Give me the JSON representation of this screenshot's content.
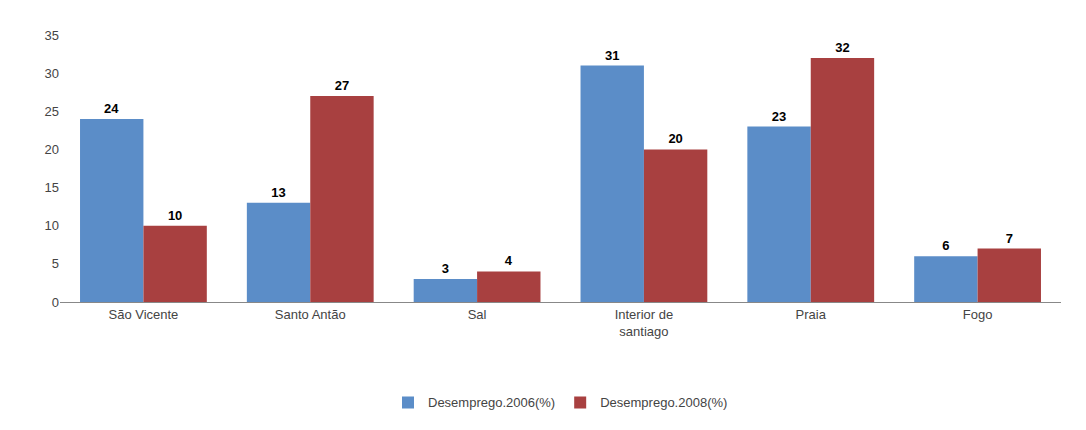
{
  "chart_data": {
    "type": "bar",
    "categories": [
      "São Vicente",
      "Santo Antão",
      "Sal",
      "Interior de\nsantiago",
      "Praia",
      "Fogo"
    ],
    "series": [
      {
        "name": "Desemprego.2006(%)",
        "color": "#5B8DC8",
        "values": [
          24,
          13,
          3,
          31,
          23,
          6
        ]
      },
      {
        "name": "Desemprego.2008(%)",
        "color": "#A84040",
        "values": [
          10,
          27,
          4,
          20,
          32,
          7
        ]
      }
    ],
    "ylim": [
      0,
      35
    ],
    "yticks": [
      0,
      5,
      10,
      15,
      20,
      25,
      30,
      35
    ],
    "grid": false,
    "legend": "bottom",
    "data_labels": true
  }
}
